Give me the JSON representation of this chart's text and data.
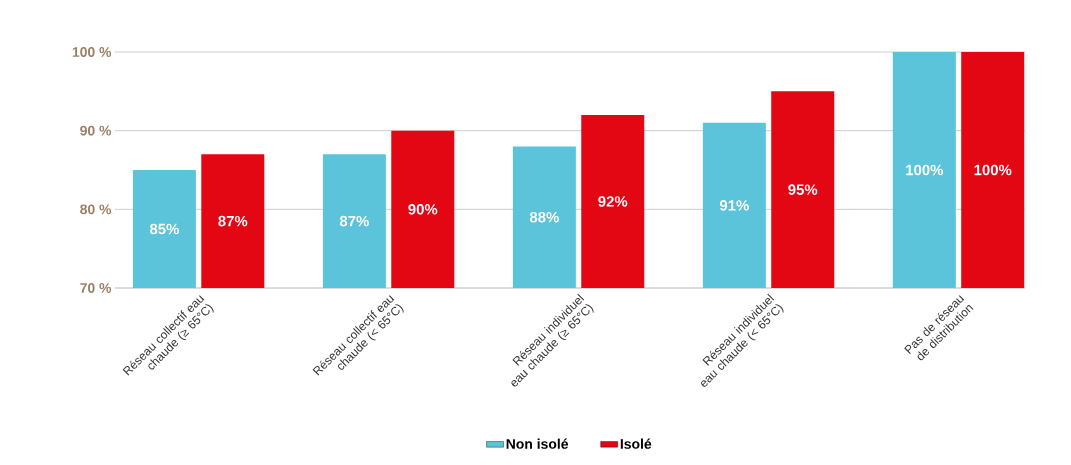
{
  "chart_data": {
    "type": "bar",
    "categories": [
      "Réseau collectif eau chaude (≥ 65°C)",
      "Réseau collectif eau chaude (< 65°C)",
      "Réseau individuel eau chaude (≥ 65°C)",
      "Réseau individuel eau chaude (< 65°C)",
      "Pas de réseau de distribution"
    ],
    "series": [
      {
        "name": "Non isolé",
        "color": "#5bc4da",
        "values": [
          85,
          87,
          88,
          91,
          100
        ],
        "value_labels": [
          "85%",
          "87%",
          "88%",
          "91%",
          "100%"
        ]
      },
      {
        "name": "Isolé",
        "color": "#e30613",
        "values": [
          87,
          90,
          92,
          95,
          100
        ],
        "value_labels": [
          "87%",
          "90%",
          "92%",
          "95%",
          "100%"
        ]
      }
    ],
    "ylim": [
      70,
      100
    ],
    "yticks": [
      {
        "value": 70,
        "label": "70 %"
      },
      {
        "value": 80,
        "label": "80 %"
      },
      {
        "value": 90,
        "label": "90 %"
      },
      {
        "value": 100,
        "label": "100 %"
      }
    ],
    "grid": "y",
    "legend": "bottom"
  }
}
